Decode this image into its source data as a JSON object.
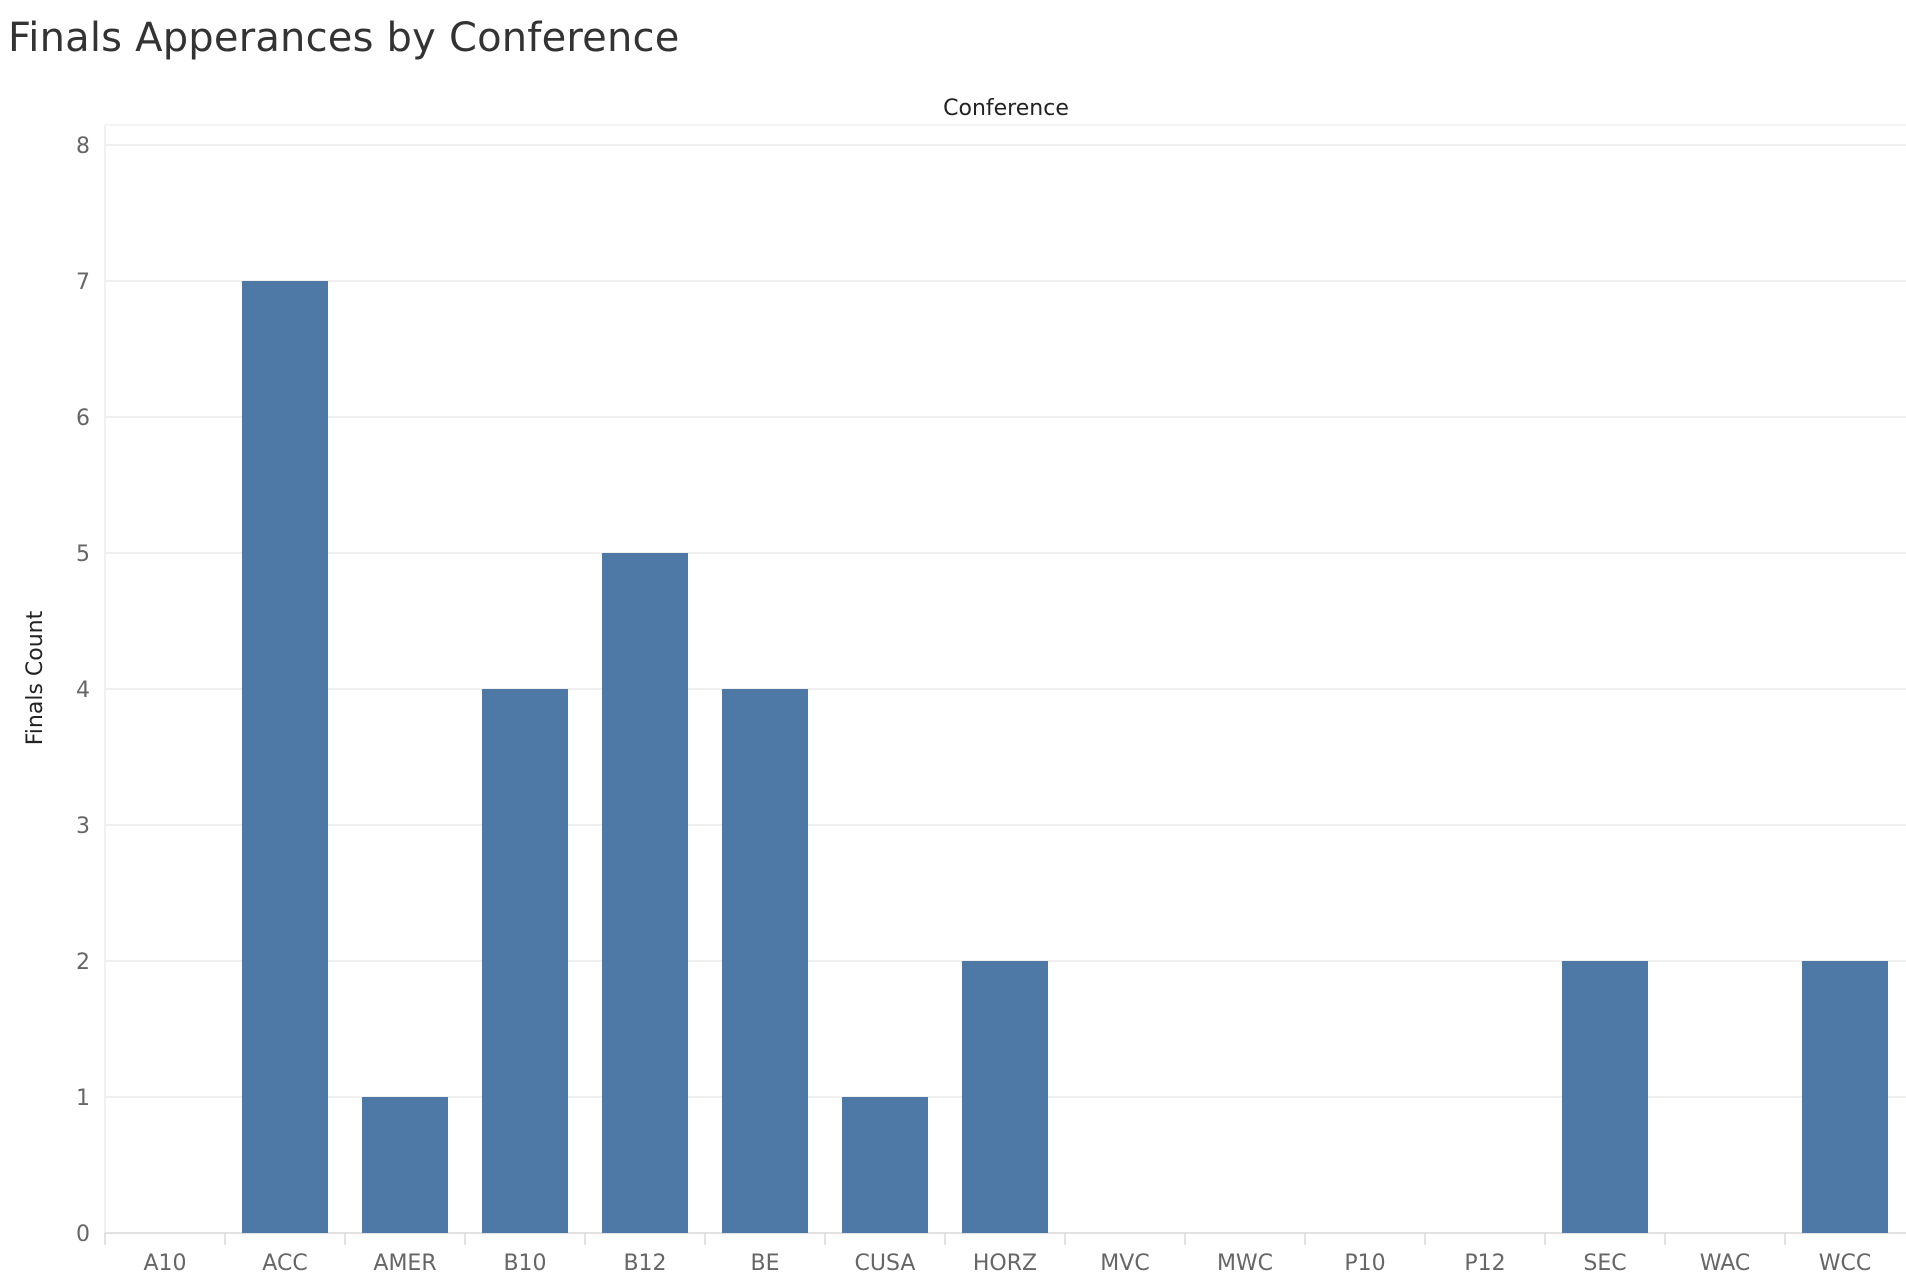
{
  "chart_data": {
    "type": "bar",
    "title": "Finals Apperances by Conference",
    "xlabel": "Conference",
    "ylabel": "Finals Count",
    "categories": [
      "A10",
      "ACC",
      "AMER",
      "B10",
      "B12",
      "BE",
      "CUSA",
      "HORZ",
      "MVC",
      "MWC",
      "P10",
      "P12",
      "SEC",
      "WAC",
      "WCC"
    ],
    "values": [
      0,
      7,
      1,
      4,
      5,
      4,
      1,
      2,
      0,
      0,
      0,
      0,
      2,
      0,
      2
    ],
    "ylim": [
      0,
      8
    ],
    "yticks": [
      0,
      1,
      2,
      3,
      4,
      5,
      6,
      7,
      8
    ],
    "grid": true,
    "legend": "none",
    "colors": {
      "bar": "#4e79a7",
      "grid": "#ebebeb",
      "axis": "#d9d9d9"
    }
  }
}
